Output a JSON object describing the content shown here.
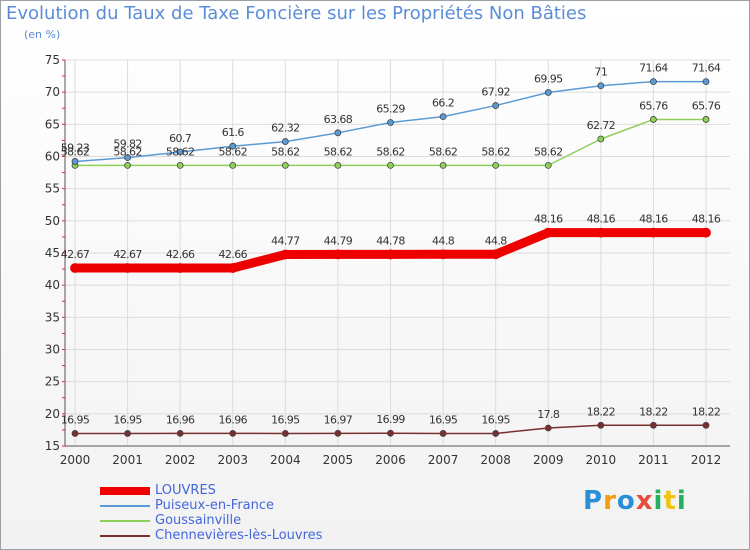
{
  "title": "Evolution du Taux de Taxe Foncière sur les Propriétés Non Bâties",
  "subtitle": "(en %)",
  "logo": {
    "text": "Proxiti",
    "letters": [
      {
        "ch": "P",
        "color": "#2a8ed8"
      },
      {
        "ch": "r",
        "color": "#f39c12"
      },
      {
        "ch": "o",
        "color": "#2a8ed8"
      },
      {
        "ch": "x",
        "color": "#e84c3d"
      },
      {
        "ch": "i",
        "color": "#27ae60"
      },
      {
        "ch": "t",
        "color": "#f1c40f"
      },
      {
        "ch": "i",
        "color": "#27ae60"
      }
    ]
  },
  "chart_data": {
    "type": "line",
    "x": [
      "2000",
      "2001",
      "2002",
      "2003",
      "2004",
      "2005",
      "2006",
      "2007",
      "2008",
      "2009",
      "2010",
      "2011",
      "2012"
    ],
    "ylim": [
      15,
      75
    ],
    "yticks": [
      "15",
      "20",
      "25",
      "30",
      "35",
      "40",
      "45",
      "50",
      "55",
      "60",
      "65",
      "70",
      "75"
    ],
    "grid": true,
    "legend_position": "bottom-left",
    "series": [
      {
        "name": "LOUVRES",
        "color": "#ee0000",
        "values": [
          42.67,
          42.67,
          42.66,
          42.66,
          44.77,
          44.79,
          44.78,
          44.8,
          44.8,
          48.16,
          48.16,
          48.16,
          48.16
        ],
        "labels": [
          "42.67",
          "42.67",
          "42.66",
          "42.66",
          "44.77",
          "44.79",
          "44.78",
          "44.8",
          "44.8",
          "48.16",
          "48.16",
          "48.16",
          "48.16"
        ]
      },
      {
        "name": "Puiseux-en-France",
        "color": "#5b9bd5",
        "values": [
          59.23,
          59.82,
          60.7,
          61.6,
          62.32,
          63.68,
          65.29,
          66.2,
          67.92,
          69.95,
          71,
          71.64,
          71.64
        ],
        "labels": [
          "59.23",
          "59.82",
          "60.7",
          "61.6",
          "62.32",
          "63.68",
          "65.29",
          "66.2",
          "67.92",
          "69.95",
          "71",
          "71.64",
          "71.64"
        ]
      },
      {
        "name": "Goussainville",
        "color": "#8fd05a",
        "values": [
          58.62,
          58.62,
          58.62,
          58.62,
          58.62,
          58.62,
          58.62,
          58.62,
          58.62,
          58.62,
          62.72,
          65.76,
          65.76
        ],
        "labels": [
          "58.62",
          "58.62",
          "58.62",
          "58.62",
          "58.62",
          "58.62",
          "58.62",
          "58.62",
          "58.62",
          "58.62",
          "62.72",
          "65.76",
          "65.76"
        ]
      },
      {
        "name": "Chennevières-lès-Louvres",
        "color": "#7a2e2e",
        "values": [
          16.95,
          16.95,
          16.96,
          16.96,
          16.95,
          16.97,
          16.99,
          16.95,
          16.95,
          17.8,
          18.22,
          18.22,
          18.22
        ],
        "labels": [
          "16.95",
          "16.95",
          "16.96",
          "16.96",
          "16.95",
          "16.97",
          "16.99",
          "16.95",
          "16.95",
          "17.8",
          "18.22",
          "18.22",
          "18.22"
        ]
      }
    ]
  }
}
